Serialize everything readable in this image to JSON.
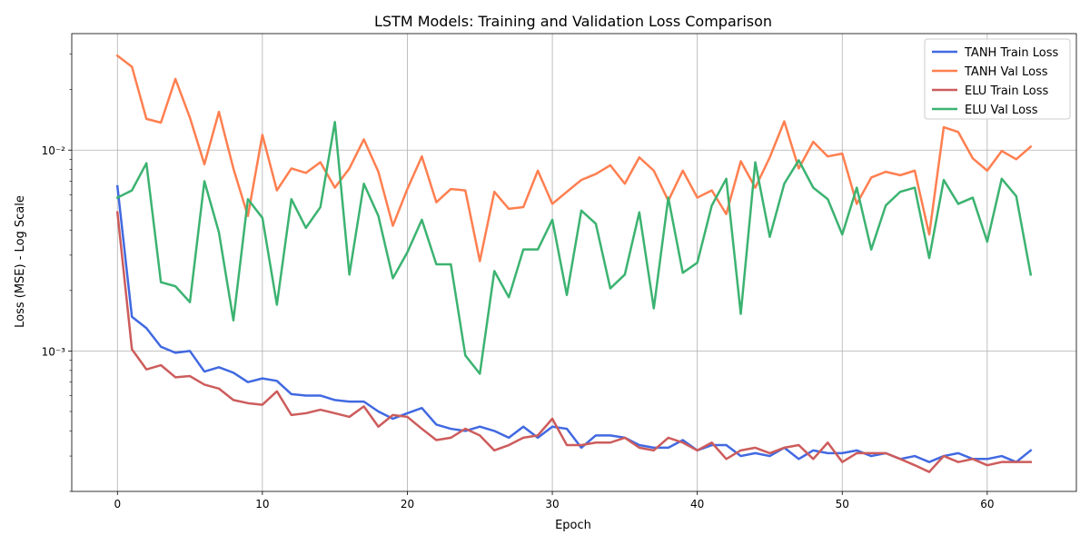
{
  "chart_data": {
    "type": "line",
    "title": "LSTM Models: Training and Validation Loss Comparison",
    "xlabel": "Epoch",
    "ylabel": "Loss (MSE) - Log Scale",
    "yscale": "log",
    "xlim": [
      -3.15,
      66.15
    ],
    "ylim": [
      0.0002,
      0.038
    ],
    "xticks": [
      0,
      10,
      20,
      30,
      40,
      50,
      60
    ],
    "yticks_major": [
      0.001,
      0.01
    ],
    "ytick_labels": [
      "10⁻³",
      "10⁻²"
    ],
    "grid": true,
    "legend_position": "top-right",
    "x": [
      0,
      1,
      2,
      3,
      4,
      5,
      6,
      7,
      8,
      9,
      10,
      11,
      12,
      13,
      14,
      15,
      16,
      17,
      18,
      19,
      20,
      21,
      22,
      23,
      24,
      25,
      26,
      27,
      28,
      29,
      30,
      31,
      32,
      33,
      34,
      35,
      36,
      37,
      38,
      39,
      40,
      41,
      42,
      43,
      44,
      45,
      46,
      47,
      48,
      49,
      50,
      51,
      52,
      53,
      54,
      55,
      56,
      57,
      58,
      59,
      60,
      61,
      62,
      63
    ],
    "series": [
      {
        "name": "TANH Train Loss",
        "color": "#4169e1",
        "values": [
          0.0066,
          0.00148,
          0.0013,
          0.00105,
          0.00098,
          0.001,
          0.00079,
          0.00083,
          0.00078,
          0.0007,
          0.00073,
          0.00071,
          0.00061,
          0.0006,
          0.0006,
          0.00057,
          0.00056,
          0.00056,
          0.0005,
          0.00046,
          0.00049,
          0.00052,
          0.00043,
          0.00041,
          0.0004,
          0.00042,
          0.0004,
          0.00037,
          0.00042,
          0.00037,
          0.00042,
          0.00041,
          0.00033,
          0.00038,
          0.00038,
          0.00037,
          0.00034,
          0.00033,
          0.00033,
          0.00036,
          0.00032,
          0.00034,
          0.00034,
          0.0003,
          0.00031,
          0.0003,
          0.00033,
          0.00029,
          0.00032,
          0.00031,
          0.00031,
          0.00032,
          0.0003,
          0.00031,
          0.00029,
          0.0003,
          0.00028,
          0.0003,
          0.00031,
          0.00029,
          0.00029,
          0.0003,
          0.00028,
          0.00032
        ]
      },
      {
        "name": "TANH Val Loss",
        "color": "#ff7f50",
        "values": [
          0.0295,
          0.026,
          0.0143,
          0.0137,
          0.0226,
          0.0145,
          0.0085,
          0.0155,
          0.0081,
          0.0047,
          0.0119,
          0.0063,
          0.0081,
          0.0077,
          0.0087,
          0.0065,
          0.0081,
          0.0113,
          0.0078,
          0.0042,
          0.0064,
          0.0093,
          0.0055,
          0.0064,
          0.0063,
          0.0028,
          0.0062,
          0.0051,
          0.0052,
          0.0079,
          0.0054,
          0.0062,
          0.0071,
          0.0076,
          0.0084,
          0.0068,
          0.0092,
          0.0079,
          0.0056,
          0.0079,
          0.0058,
          0.0063,
          0.0048,
          0.0088,
          0.0065,
          0.0092,
          0.0139,
          0.0081,
          0.011,
          0.0093,
          0.0096,
          0.0054,
          0.0073,
          0.0078,
          0.0075,
          0.0079,
          0.0038,
          0.013,
          0.0123,
          0.0091,
          0.0079,
          0.0099,
          0.009,
          0.0104
        ]
      },
      {
        "name": "ELU Train Loss",
        "color": "#cd5c5c",
        "values": [
          0.0049,
          0.00102,
          0.00081,
          0.00085,
          0.00074,
          0.00075,
          0.00068,
          0.00065,
          0.00057,
          0.00055,
          0.00054,
          0.00063,
          0.00048,
          0.00049,
          0.00051,
          0.00049,
          0.00047,
          0.00053,
          0.00042,
          0.00048,
          0.00047,
          0.00041,
          0.00036,
          0.00037,
          0.00041,
          0.00038,
          0.00032,
          0.00034,
          0.00037,
          0.00038,
          0.00046,
          0.00034,
          0.00034,
          0.00035,
          0.00035,
          0.00037,
          0.00033,
          0.00032,
          0.00037,
          0.00035,
          0.00032,
          0.00035,
          0.00029,
          0.00032,
          0.00033,
          0.00031,
          0.00033,
          0.00034,
          0.00029,
          0.00035,
          0.00028,
          0.00031,
          0.00031,
          0.00031,
          0.00029,
          0.00027,
          0.00025,
          0.0003,
          0.00028,
          0.00029,
          0.00027,
          0.00028,
          0.00028,
          0.00028
        ]
      },
      {
        "name": "ELU Val Loss",
        "color": "#3cb371",
        "values": [
          0.0058,
          0.0063,
          0.0086,
          0.0022,
          0.0021,
          0.00175,
          0.007,
          0.0039,
          0.00142,
          0.0057,
          0.0046,
          0.0017,
          0.0057,
          0.0041,
          0.0052,
          0.0138,
          0.0024,
          0.0068,
          0.0047,
          0.0023,
          0.0031,
          0.0045,
          0.0027,
          0.0027,
          0.00095,
          0.00077,
          0.0025,
          0.00185,
          0.0032,
          0.0032,
          0.0045,
          0.0019,
          0.005,
          0.0043,
          0.00205,
          0.0024,
          0.0049,
          0.00163,
          0.0058,
          0.00245,
          0.00275,
          0.0053,
          0.0072,
          0.00153,
          0.0087,
          0.0037,
          0.0068,
          0.0089,
          0.0065,
          0.0057,
          0.0038,
          0.0065,
          0.0032,
          0.0053,
          0.0062,
          0.0065,
          0.0029,
          0.0071,
          0.0054,
          0.0058,
          0.0035,
          0.0072,
          0.0059,
          0.0024
        ]
      }
    ]
  }
}
